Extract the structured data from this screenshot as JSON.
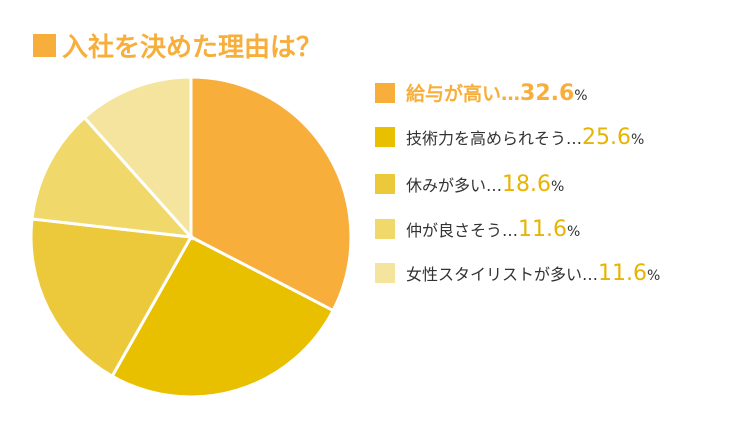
{
  "chart_data": {
    "type": "pie",
    "title": "入社を決めた理由は？",
    "categories": [
      "給与が高い",
      "技術力を高められそう",
      "休みが多い",
      "仲が良さそう",
      "女性スタイリストが多い"
    ],
    "values": [
      32.6,
      25.6,
      18.6,
      11.6,
      11.6
    ],
    "colors": [
      "#f7ae3b",
      "#e8c000",
      "#ecc93a",
      "#f1d86a",
      "#f5e49e"
    ],
    "separator": "…",
    "unit": "%"
  }
}
